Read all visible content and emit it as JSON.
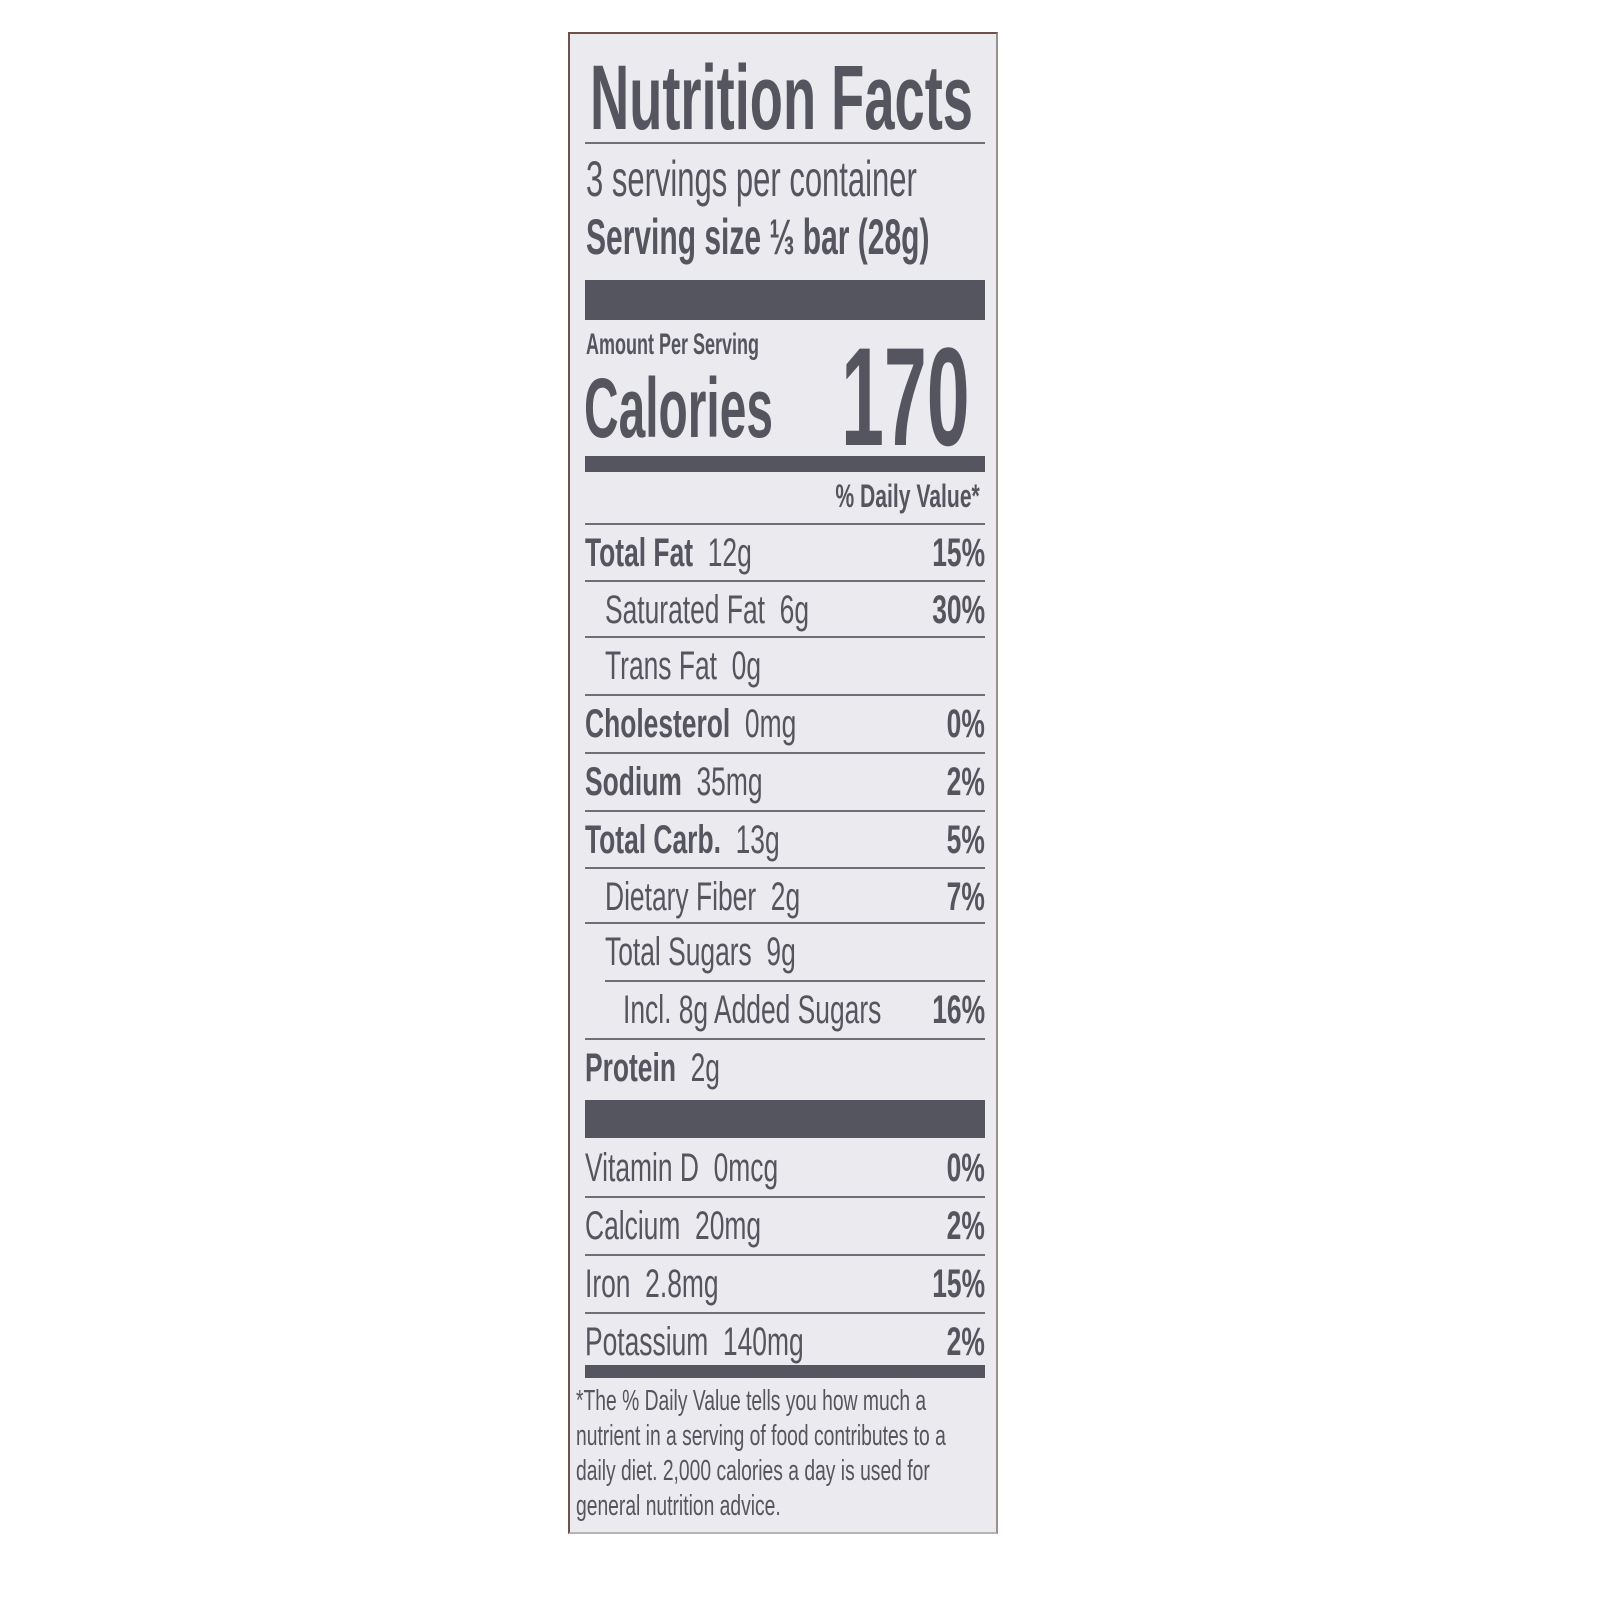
{
  "colors": {
    "ink": "#55555f",
    "background": "#ebeaee",
    "border": "#6e5249"
  },
  "title": "Nutrition Facts",
  "servings_per_container": "3 servings per container",
  "serving_size_label": "Serving size",
  "serving_size_value": "⅓ bar (28g)",
  "amount_per_serving": "Amount Per Serving",
  "calories_label": "Calories",
  "calories_value": "170",
  "daily_value_header": "% Daily Value*",
  "nutrients": [
    {
      "name": "Total Fat",
      "amount": "12g",
      "dv": "15%",
      "level": 0
    },
    {
      "name": "Saturated Fat",
      "amount": "6g",
      "dv": "30%",
      "level": 1
    },
    {
      "name": "Trans Fat",
      "amount": "0g",
      "dv": "",
      "level": 1
    },
    {
      "name": "Cholesterol",
      "amount": "0mg",
      "dv": "0%",
      "level": 0
    },
    {
      "name": "Sodium",
      "amount": "35mg",
      "dv": "2%",
      "level": 0
    },
    {
      "name": "Total Carb.",
      "amount": "13g",
      "dv": "5%",
      "level": 0
    },
    {
      "name": "Dietary Fiber",
      "amount": "2g",
      "dv": "7%",
      "level": 1
    },
    {
      "name": "Total Sugars",
      "amount": "9g",
      "dv": "",
      "level": 1
    },
    {
      "name": "Incl. 8g Added Sugars",
      "amount": "",
      "dv": "16%",
      "level": 2
    },
    {
      "name": "Protein",
      "amount": "2g",
      "dv": "",
      "level": 0
    }
  ],
  "vitamins": [
    {
      "name": "Vitamin D",
      "amount": "0mcg",
      "dv": "0%"
    },
    {
      "name": "Calcium",
      "amount": "20mg",
      "dv": "2%"
    },
    {
      "name": "Iron",
      "amount": "2.8mg",
      "dv": "15%"
    },
    {
      "name": "Potassium",
      "amount": "140mg",
      "dv": "2%"
    }
  ],
  "footnote": "*The % Daily Value tells you how much a nutrient in a serving of food contributes to a daily diet. 2,000 calories a day is used for general nutrition advice."
}
